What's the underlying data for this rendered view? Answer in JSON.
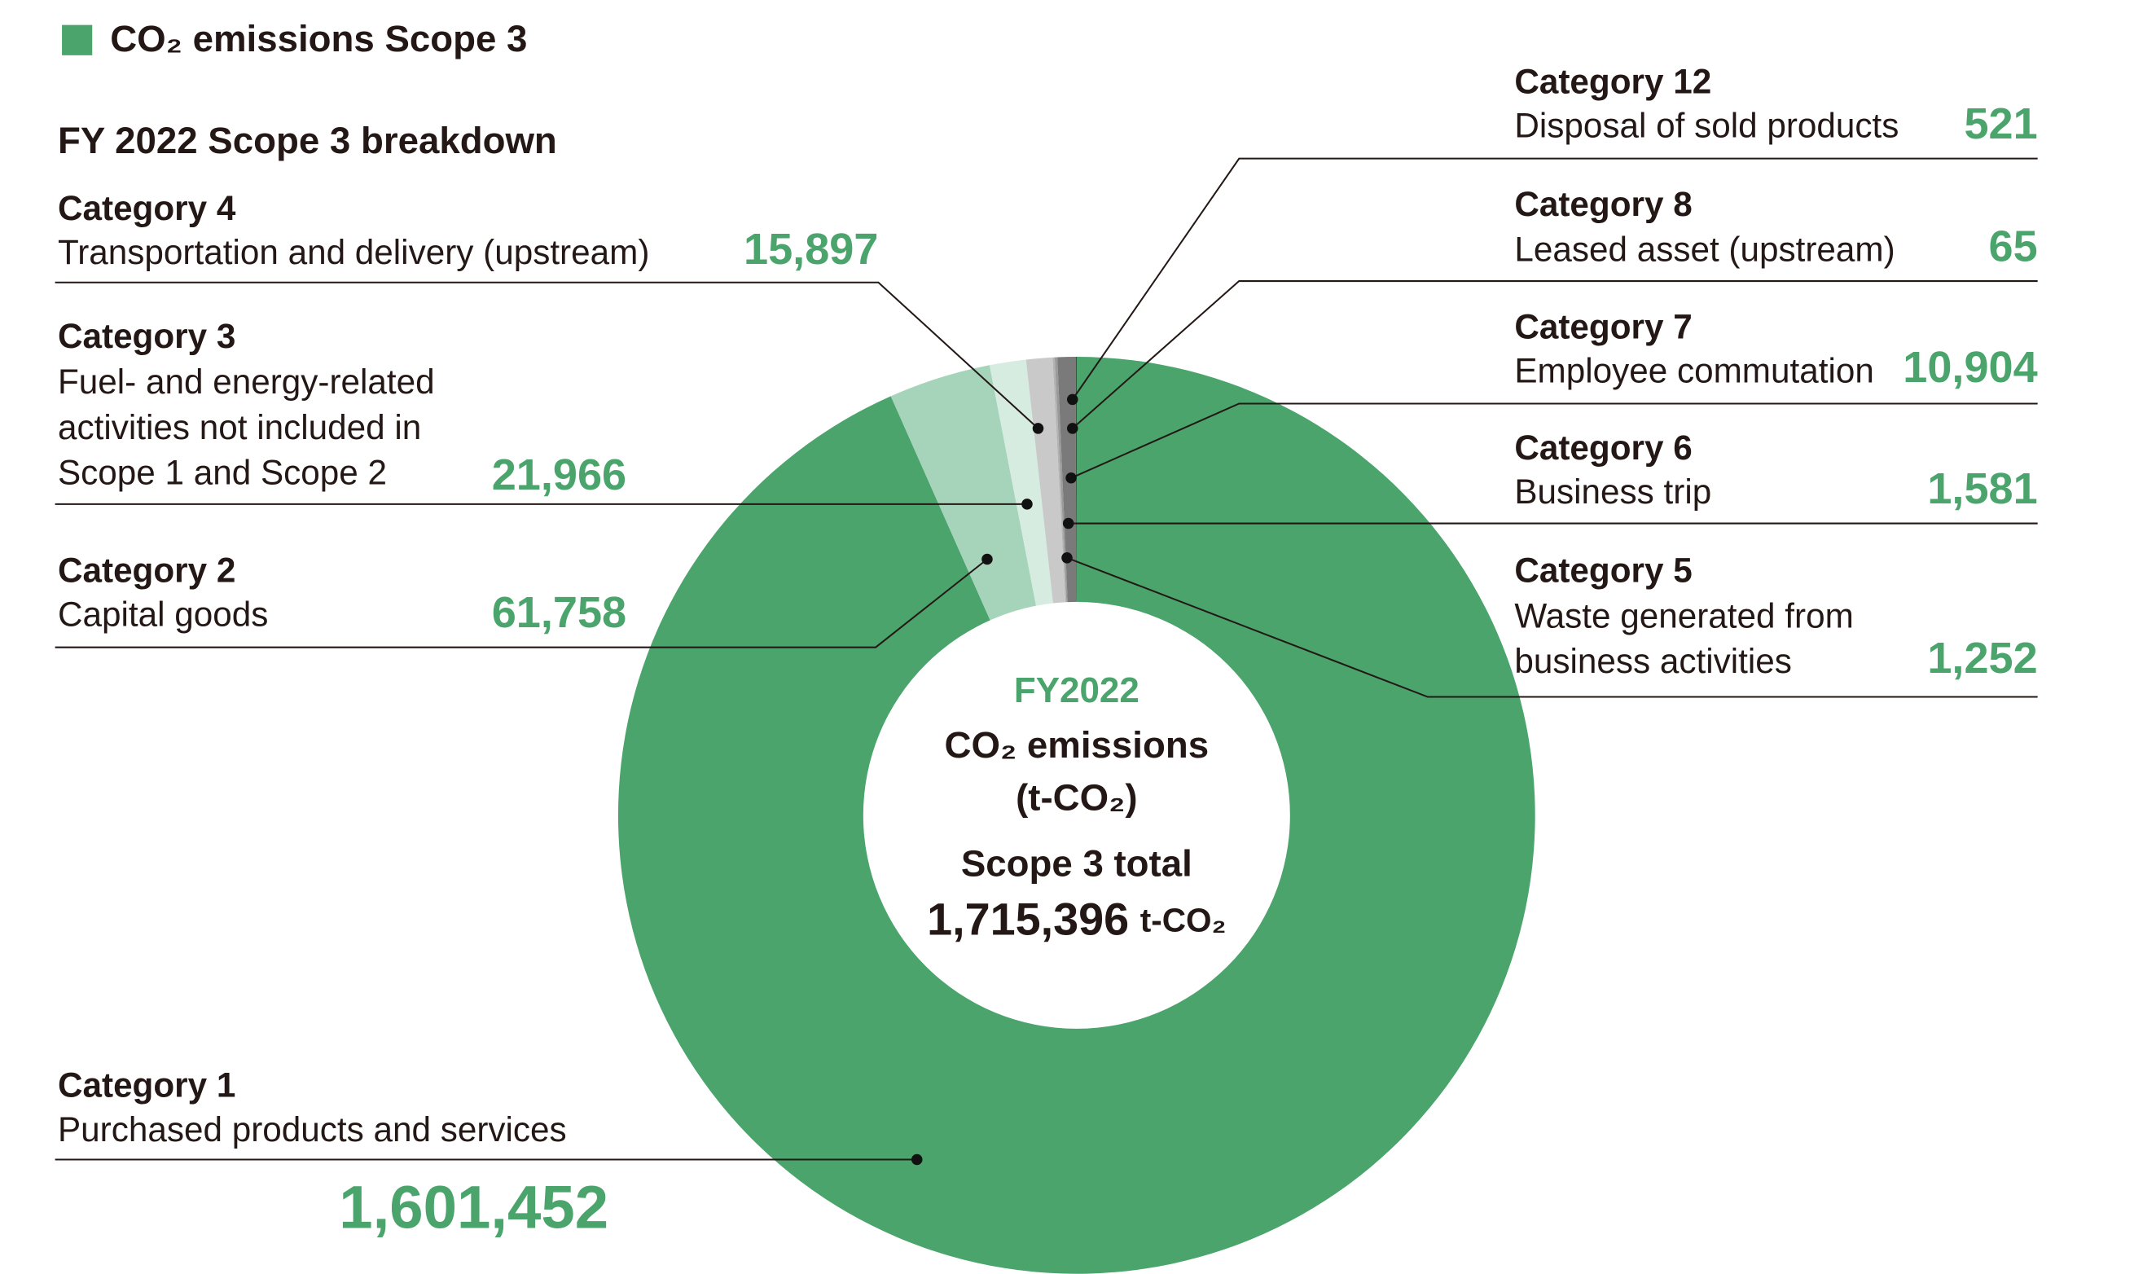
{
  "chart_data": {
    "type": "donut",
    "legend": "CO₂ emissions Scope 3",
    "legend_color": "#4aa46b",
    "title": "FY 2022 Scope 3 breakdown",
    "center_lines": [
      "FY2022",
      "CO₂ emissions",
      "(t-CO₂)",
      "Scope 3 total"
    ],
    "total_value": 1715396,
    "total_label": "1,715,396",
    "total_unit": "t-CO₂",
    "categories": [
      "Category 1",
      "Category 2",
      "Category 3",
      "Category 4",
      "Category 5",
      "Category 6",
      "Category 7",
      "Category 8",
      "Category 12"
    ],
    "descriptions": [
      [
        "Purchased products and services"
      ],
      [
        "Capital goods"
      ],
      [
        "Fuel- and energy-related",
        "activities not included in",
        "Scope 1 and Scope 2"
      ],
      [
        "Transportation and delivery (upstream)"
      ],
      [
        "Waste generated from",
        "business activities"
      ],
      [
        "Business trip"
      ],
      [
        "Employee commutation"
      ],
      [
        "Leased asset (upstream)"
      ],
      [
        "Disposal of sold products"
      ]
    ],
    "values": [
      1601452,
      61758,
      21966,
      15897,
      1252,
      1581,
      10904,
      65,
      521
    ],
    "value_labels": [
      "1,601,452",
      "61,758",
      "21,966",
      "15,897",
      "1,252",
      "1,581",
      "10,904",
      "65",
      "521"
    ],
    "colors": [
      "#4aa46b",
      "#a6d4bb",
      "#d6ece0",
      "#c9c9c9",
      "#b3b3b3",
      "#9a9a9a",
      "#7a7a7a",
      "#555555",
      "#2e2e2e"
    ]
  }
}
